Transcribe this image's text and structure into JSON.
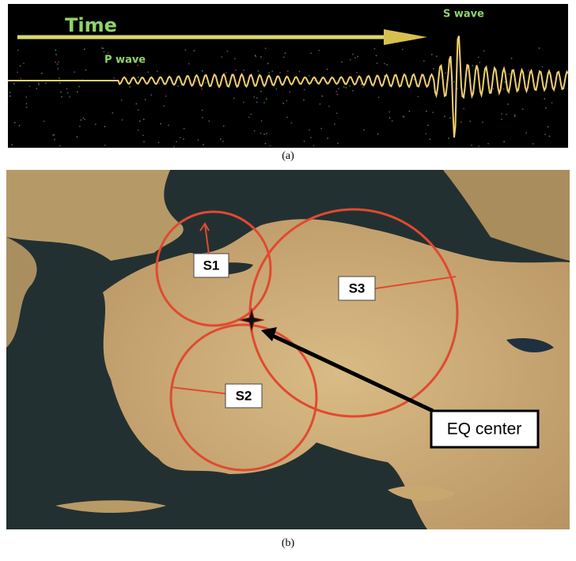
{
  "panel_a": {
    "time_label": "Time",
    "p_wave_label": "P wave",
    "s_wave_label": "S wave",
    "caption": "(a)"
  },
  "panel_b": {
    "stations": [
      "S1",
      "S2",
      "S3"
    ],
    "epicenter_label": "EQ center",
    "caption": "(b)"
  }
}
